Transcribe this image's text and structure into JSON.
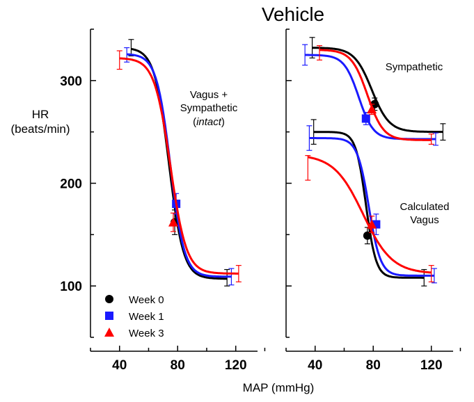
{
  "figure": {
    "title": "Vehicle",
    "xlabel": "MAP  (mmHg)",
    "ylabel_line1": "HR",
    "ylabel_line2": "(beats/min)"
  },
  "legend": [
    {
      "label": "Week 0",
      "color": "#000000",
      "marker": "circle"
    },
    {
      "label": "Week 1",
      "color": "#1a1aff",
      "marker": "square"
    },
    {
      "label": "Week 3",
      "color": "#ff0000",
      "marker": "triangle"
    }
  ],
  "chart_data": [
    {
      "type": "line",
      "panel": "left",
      "xlim": [
        20,
        135
      ],
      "ylim": [
        50,
        350
      ],
      "xticks": [
        40,
        80,
        120
      ],
      "yticks": [
        100,
        200,
        300
      ],
      "xtick_labels": [
        "40",
        "80",
        "120"
      ],
      "ytick_labels": [
        "100",
        "200",
        "300"
      ],
      "annotation": {
        "line1": "Vagus +",
        "line2": "Sympathetic",
        "line3": "intact"
      },
      "series": [
        {
          "name": "Week 0",
          "color": "#000000",
          "marker": "circle",
          "curve": {
            "top": 332,
            "bottom": 107,
            "mid": 74,
            "slope": 5.0
          },
          "points": [
            {
              "x": 48,
              "y": 332,
              "err": 8
            },
            {
              "x": 78,
              "y": 162,
              "err": 12
            },
            {
              "x": 114,
              "y": 108,
              "err": 8
            }
          ]
        },
        {
          "name": "Week 1",
          "color": "#1a1aff",
          "marker": "square",
          "curve": {
            "top": 326,
            "bottom": 109,
            "mid": 75,
            "slope": 4.8
          },
          "points": [
            {
              "x": 45,
              "y": 325,
              "err": 7
            },
            {
              "x": 79,
              "y": 180,
              "err": 10
            },
            {
              "x": 117,
              "y": 109,
              "err": 8
            }
          ]
        },
        {
          "name": "Week 3",
          "color": "#ff0000",
          "marker": "triangle",
          "curve": {
            "top": 322,
            "bottom": 112,
            "mid": 75,
            "slope": 5.5
          },
          "points": [
            {
              "x": 40,
              "y": 320,
              "err": 9
            },
            {
              "x": 77,
              "y": 162,
              "err": 9
            },
            {
              "x": 122,
              "y": 112,
              "err": 8
            }
          ]
        }
      ]
    },
    {
      "type": "line",
      "panel": "right",
      "xlim": [
        20,
        135
      ],
      "ylim": [
        50,
        350
      ],
      "xticks": [
        40,
        80,
        120
      ],
      "yticks": [
        100,
        200,
        300
      ],
      "xtick_labels": [
        "40",
        "80",
        "120"
      ],
      "annotations": [
        {
          "line1": "Sympathetic"
        },
        {
          "line1": "Calculated",
          "line2": "Vagus"
        }
      ],
      "series": [
        {
          "name": "Week 0 Sympathetic",
          "color": "#000000",
          "marker": "circle",
          "curve": {
            "top": 332,
            "bottom": 250,
            "mid": 79,
            "slope": 6.0
          },
          "points": [
            {
              "x": 38,
              "y": 332,
              "err": 10
            },
            {
              "x": 81,
              "y": 277,
              "err": 6
            },
            {
              "x": 128,
              "y": 250,
              "err": 8
            }
          ]
        },
        {
          "name": "Week 1 Sympathetic",
          "color": "#1a1aff",
          "marker": "square",
          "curve": {
            "top": 325,
            "bottom": 243,
            "mid": 70,
            "slope": 5.0
          },
          "points": [
            {
              "x": 33,
              "y": 325,
              "err": 10
            },
            {
              "x": 75,
              "y": 263,
              "err": 6
            },
            {
              "x": 123,
              "y": 243,
              "err": 6
            }
          ]
        },
        {
          "name": "Week 3 Sympathetic",
          "color": "#ff0000",
          "marker": "triangle",
          "curve": {
            "top": 330,
            "bottom": 242,
            "mid": 76,
            "slope": 5.5
          },
          "points": [
            {
              "x": 43,
              "y": 327,
              "err": 7
            },
            {
              "x": 79,
              "y": 272,
              "err": 5
            },
            {
              "x": 120,
              "y": 243,
              "err": 5
            }
          ]
        },
        {
          "name": "Week 0 Calculated Vagus",
          "color": "#000000",
          "marker": "circle",
          "curve": {
            "top": 250,
            "bottom": 108,
            "mid": 75,
            "slope": 3.5
          },
          "points": [
            {
              "x": 39,
              "y": 250,
              "err": 12
            },
            {
              "x": 76,
              "y": 149,
              "err": 8
            },
            {
              "x": 115,
              "y": 108,
              "err": 8
            }
          ]
        },
        {
          "name": "Week 1 Calculated Vagus",
          "color": "#1a1aff",
          "marker": "square",
          "curve": {
            "top": 244,
            "bottom": 110,
            "mid": 77,
            "slope": 4.0
          },
          "points": [
            {
              "x": 36,
              "y": 244,
              "err": 12
            },
            {
              "x": 82,
              "y": 160,
              "err": 10
            },
            {
              "x": 122,
              "y": 110,
              "err": 7
            }
          ]
        },
        {
          "name": "Week 3 Calculated Vagus",
          "color": "#ff0000",
          "marker": "triangle",
          "curve": {
            "top": 228,
            "bottom": 112,
            "mid": 73,
            "slope": 10.0
          },
          "points": [
            {
              "x": 35,
              "y": 215,
              "err": 12
            },
            {
              "x": 79,
              "y": 160,
              "err": 8
            },
            {
              "x": 120,
              "y": 112,
              "err": 8
            }
          ]
        }
      ]
    }
  ]
}
